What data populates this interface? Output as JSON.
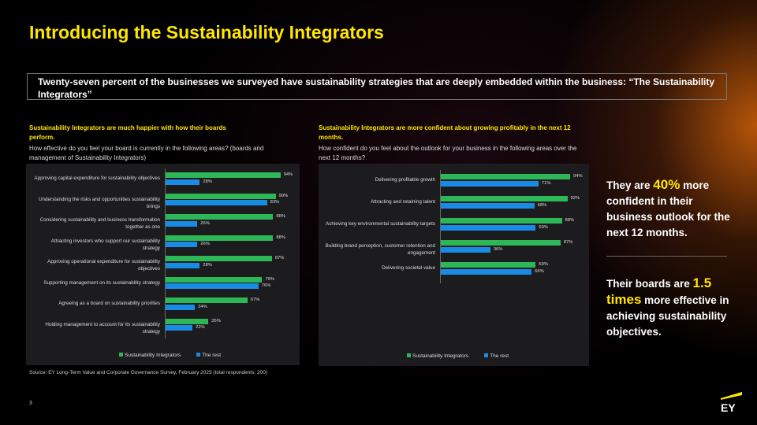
{
  "title": "Introducing the Sustainability Integrators",
  "banner": "Twenty-seven percent of the businesses we surveyed have sustainability strategies that are deeply embedded within the business:   “The Sustainability Integrators”",
  "left": {
    "subtitle": "Sustainability Integrators are much happier with how their boards perform.",
    "question": "How effective do you feel your board is currently in the following areas? (boards and management of Sustainability Integrators)"
  },
  "right": {
    "subtitle": "Sustainability Integrators are more confident about growing profitably in the next 12 months.",
    "question": "How confident do you feel about the outlook for your business in the following areas over the next 12 months?"
  },
  "chart_data": [
    {
      "type": "bar",
      "orientation": "horizontal",
      "categories": [
        "Approving capital expenditure for sustainability objectives",
        "Understanding the risks and opportunities sustainability brings",
        "Considering sustainability and business transformation together as one",
        "Attracting investors who support our sustainability strategy",
        "Approving operational expenditure for sustainability objectives",
        "Supporting management on its sustainability strategy",
        "Agreeing as a board on sustainability priorities",
        "Holding management to account for its sustainability strategy"
      ],
      "series": [
        {
          "name": "Sustainability Integrators",
          "color": "#2db757",
          "values": [
            94,
            90,
            88,
            88,
            87,
            79,
            67,
            35
          ]
        },
        {
          "name": "The rest",
          "color": "#188ce5",
          "values": [
            28,
            83,
            26,
            26,
            28,
            76,
            24,
            22
          ]
        }
      ],
      "legend": "bottom",
      "unit": "%"
    },
    {
      "type": "bar",
      "orientation": "horizontal",
      "categories": [
        "Delivering profitable growth",
        "Attracting and retaining talent",
        "Achieving key environmental sustainability targets",
        "Building brand perception, customer retention and engagement",
        "Delivering societal value"
      ],
      "series": [
        {
          "name": "Sustainability Integrators",
          "color": "#2db757",
          "values": [
            94,
            92,
            88,
            87,
            69
          ]
        },
        {
          "name": "The rest",
          "color": "#188ce5",
          "values": [
            71,
            68,
            69,
            36,
            66
          ]
        }
      ],
      "legend": "bottom",
      "unit": "%"
    }
  ],
  "side": {
    "s1_pre": "They are ",
    "s1_hl": "40%",
    "s1_post": " more confident in their business outlook for the next 12 months.",
    "s2_pre": "Their boards are ",
    "s2_hl": "1.5 times",
    "s2_post": " more effective in achieving sustainability objectives."
  },
  "source": "Source: EY Long-Term Value and Corporate Governance Survey, February 2025 (total respondents: 200)",
  "page_number": "3",
  "logo": "EY",
  "accent": "#ffe600"
}
